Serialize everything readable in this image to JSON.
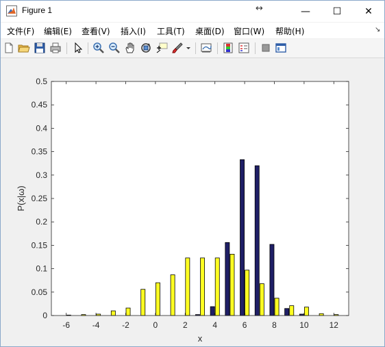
{
  "window": {
    "title": "Figure 1",
    "resize_glyph": "↔",
    "controls": {
      "minimize": "—",
      "maximize": "☐",
      "close": "✕"
    }
  },
  "menu": {
    "items": [
      "文件(F)",
      "编辑(E)",
      "查看(V)",
      "插入(I)",
      "工具(T)",
      "桌面(D)",
      "窗口(W)",
      "帮助(H)"
    ],
    "overflow_glyph": "↘"
  },
  "toolbar": {
    "icons": [
      "new-figure-icon",
      "open-file-icon",
      "save-icon",
      "print-icon",
      "select-arrow-icon",
      "zoom-in-icon",
      "zoom-out-icon",
      "pan-hand-icon",
      "rotate-3d-icon",
      "data-cursor-icon",
      "brush-icon",
      "dropdown-arrow-icon",
      "link-plot-icon",
      "colorbar-icon",
      "legend-icon",
      "hide-plot-tools-icon",
      "show-plot-tools-icon"
    ]
  },
  "chart_data": {
    "type": "bar",
    "xlabel": "x",
    "ylabel": "P(x|ω)",
    "xlim": [
      -7,
      13
    ],
    "ylim": [
      0,
      0.5
    ],
    "xticks": [
      "-6",
      "-4",
      "-2",
      "0",
      "2",
      "4",
      "6",
      "8",
      "10",
      "12"
    ],
    "xtick_values": [
      -6,
      -4,
      -2,
      0,
      2,
      4,
      6,
      8,
      10,
      12
    ],
    "yticks": [
      "0",
      "0.05",
      "0.1",
      "0.15",
      "0.2",
      "0.25",
      "0.3",
      "0.35",
      "0.4",
      "0.45",
      "0.5"
    ],
    "ytick_values": [
      0,
      0.05,
      0.1,
      0.15,
      0.2,
      0.25,
      0.3,
      0.35,
      0.4,
      0.45,
      0.5
    ],
    "x": [
      -6,
      -5,
      -4,
      -3,
      -2,
      -1,
      0,
      1,
      2,
      3,
      4,
      5,
      6,
      7,
      8,
      9,
      10,
      11,
      12
    ],
    "series": [
      {
        "color": "#1f1f66",
        "values": [
          0,
          0,
          0,
          0,
          0,
          0,
          0,
          0,
          0,
          0.002,
          0.019,
          0.156,
          0.333,
          0.32,
          0.152,
          0.015,
          0.003,
          0,
          0
        ]
      },
      {
        "color": "#ffff22",
        "values": [
          0.001,
          0.002,
          0.003,
          0.01,
          0.016,
          0.056,
          0.07,
          0.087,
          0.123,
          0.123,
          0.123,
          0.131,
          0.097,
          0.068,
          0.037,
          0.021,
          0.018,
          0.004,
          0.002
        ]
      }
    ],
    "grid": false,
    "legend": "none"
  }
}
